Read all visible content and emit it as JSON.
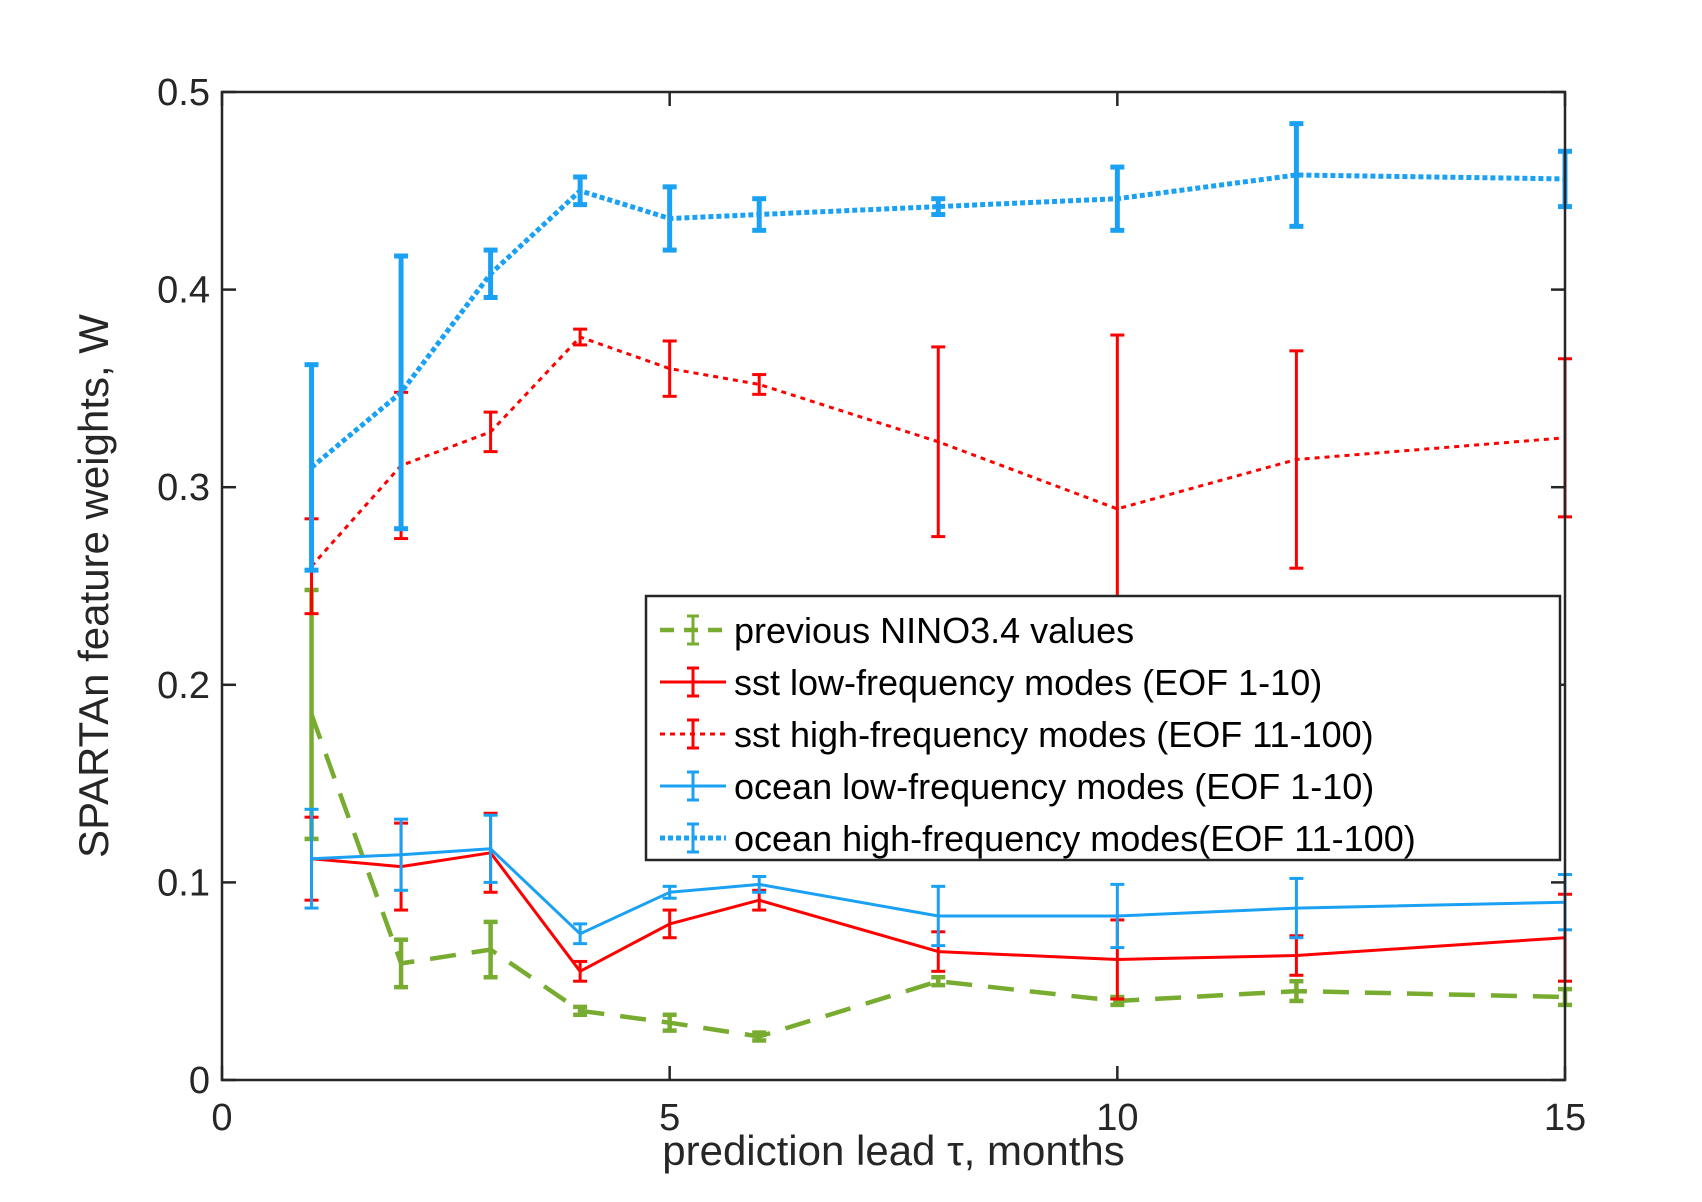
{
  "chart_data": {
    "type": "line",
    "xlabel": "prediction lead τ, months",
    "ylabel": "SPARTAn feature weights, W",
    "xlim": [
      0,
      15
    ],
    "ylim": [
      0,
      0.5
    ],
    "xticks": [
      0,
      5,
      10,
      15
    ],
    "yticks": [
      0,
      0.1,
      0.2,
      0.3,
      0.4,
      0.5
    ],
    "x": [
      1,
      2,
      3,
      4,
      5,
      6,
      8,
      10,
      12,
      15
    ],
    "legend_position": "inside-right",
    "series": [
      {
        "name": "previous NINO3.4 values",
        "color": "#77ac30",
        "style": "dashed",
        "values": [
          0.185,
          0.059,
          0.066,
          0.035,
          0.029,
          0.022,
          0.05,
          0.04,
          0.045,
          0.042
        ],
        "err": [
          0.063,
          0.012,
          0.014,
          0.002,
          0.004,
          0.002,
          0.002,
          0.002,
          0.005,
          0.004
        ]
      },
      {
        "name": "sst low-frequency modes (EOF 1-10)",
        "color": "#ff0000",
        "style": "solid",
        "values": [
          0.112,
          0.108,
          0.115,
          0.055,
          0.079,
          0.091,
          0.065,
          0.061,
          0.063,
          0.072
        ],
        "err": [
          0.021,
          0.022,
          0.02,
          0.005,
          0.007,
          0.005,
          0.01,
          0.02,
          0.01,
          0.022
        ]
      },
      {
        "name": "sst high-frequency modes (EOF 11-100)",
        "color": "#ff0000",
        "style": "dotted",
        "values": [
          0.26,
          0.311,
          0.328,
          0.376,
          0.36,
          0.352,
          0.323,
          0.289,
          0.314,
          0.325
        ],
        "err": [
          0.024,
          0.037,
          0.01,
          0.004,
          0.014,
          0.005,
          0.048,
          0.088,
          0.055,
          0.04
        ]
      },
      {
        "name": "ocean low-frequency modes (EOF 1-10)",
        "color": "#1ba1f3",
        "style": "solid",
        "values": [
          0.112,
          0.114,
          0.117,
          0.074,
          0.095,
          0.099,
          0.083,
          0.083,
          0.087,
          0.09
        ],
        "err": [
          0.025,
          0.018,
          0.017,
          0.005,
          0.003,
          0.004,
          0.015,
          0.016,
          0.015,
          0.014
        ]
      },
      {
        "name": "ocean high-frequency modes(EOF 11-100)",
        "color": "#1ba1f3",
        "style": "dotted-heavy",
        "values": [
          0.31,
          0.348,
          0.408,
          0.45,
          0.436,
          0.438,
          0.442,
          0.446,
          0.458,
          0.456
        ],
        "err": [
          0.052,
          0.069,
          0.012,
          0.007,
          0.016,
          0.008,
          0.004,
          0.016,
          0.026,
          0.014
        ]
      }
    ]
  }
}
